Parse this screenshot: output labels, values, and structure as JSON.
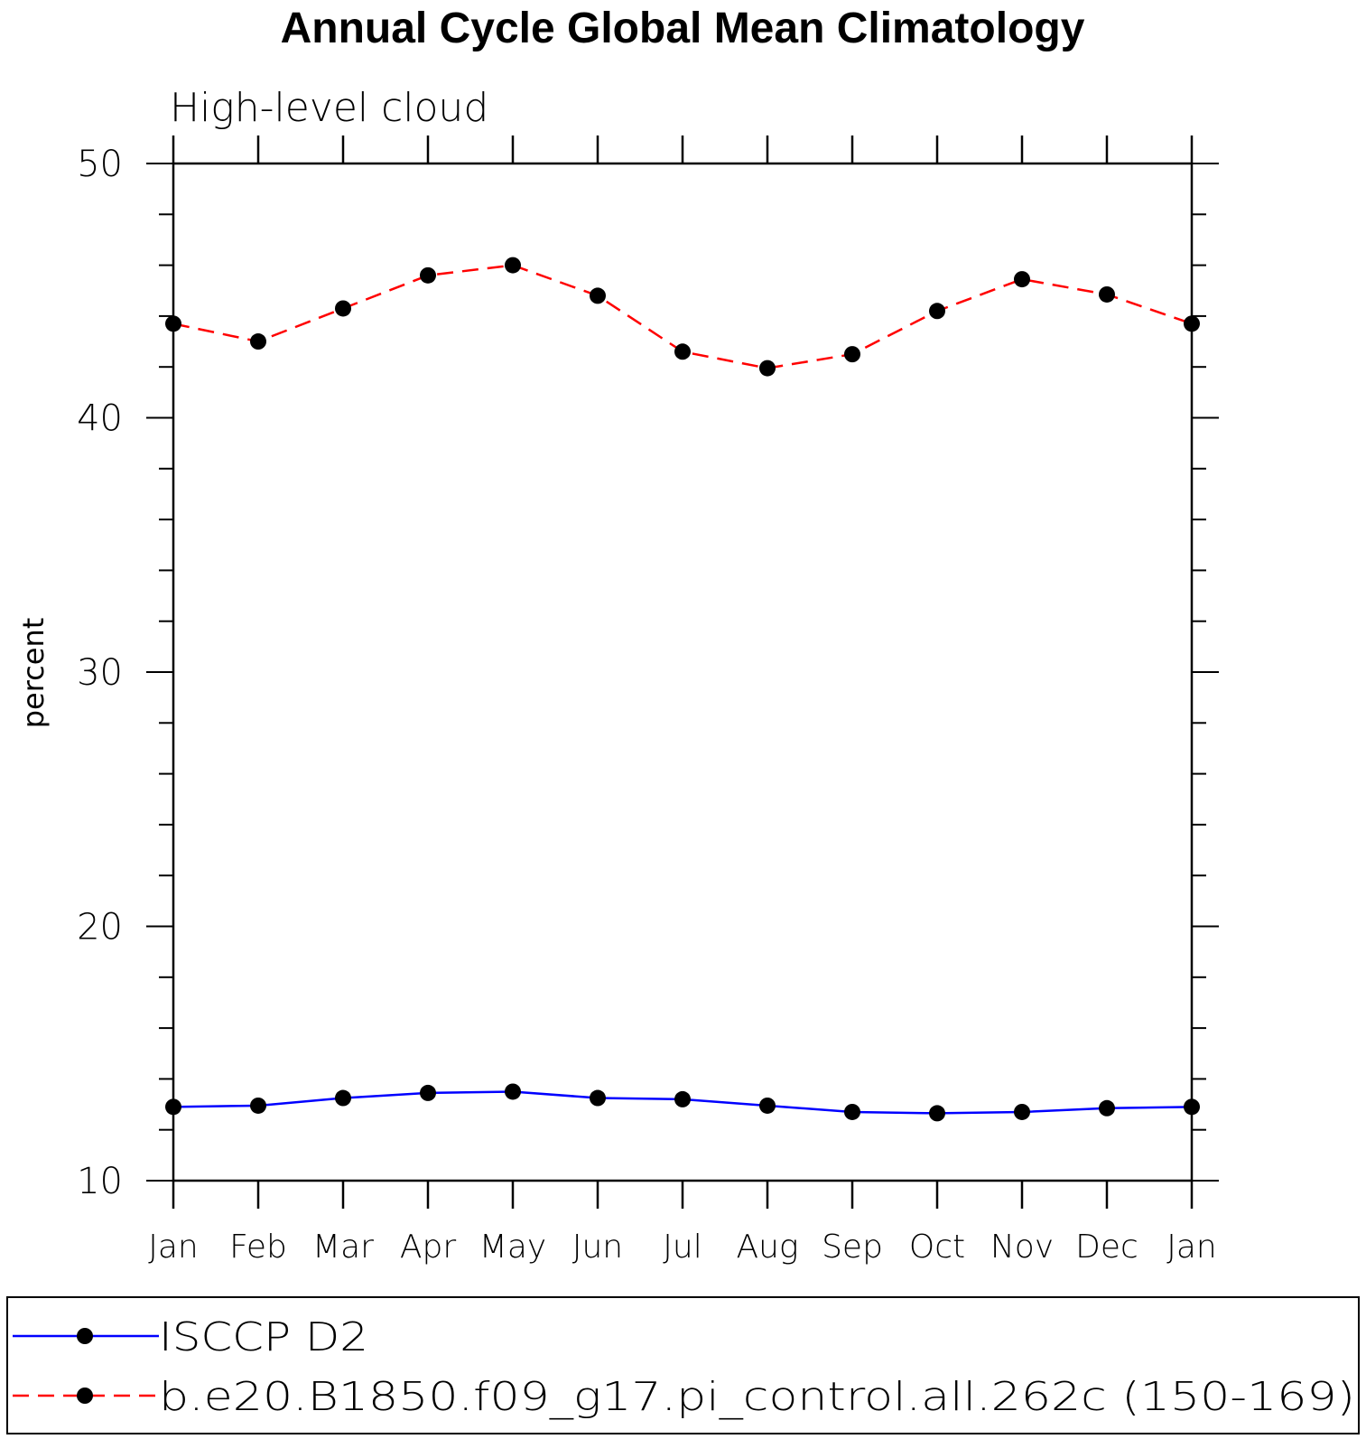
{
  "chart_data": {
    "type": "line",
    "title": "Annual Cycle Global Mean Climatology",
    "subtitle": "High-level cloud",
    "xlabel": "",
    "ylabel": "percent",
    "categories": [
      "Jan",
      "Feb",
      "Mar",
      "Apr",
      "May",
      "Jun",
      "Jul",
      "Aug",
      "Sep",
      "Oct",
      "Nov",
      "Dec",
      "Jan"
    ],
    "ylim": [
      10,
      50
    ],
    "yticks": [
      "10",
      "20",
      "30",
      "40",
      "50"
    ],
    "grid": false,
    "legend_position": "bottom",
    "series": [
      {
        "name": "ISCCP D2",
        "color": "#0000ff",
        "dash": "solid",
        "values": [
          12.9,
          12.95,
          13.25,
          13.45,
          13.5,
          13.25,
          13.2,
          12.95,
          12.7,
          12.65,
          12.7,
          12.85,
          12.9
        ]
      },
      {
        "name": "b.e20.B1850.f09_g17.pi_control.all.262c (150-169)",
        "color": "#ff0000",
        "dash": "dashed",
        "values": [
          43.7,
          43.0,
          44.3,
          45.6,
          46.0,
          44.8,
          42.6,
          41.95,
          42.5,
          44.2,
          45.45,
          44.85,
          43.7
        ]
      }
    ]
  }
}
